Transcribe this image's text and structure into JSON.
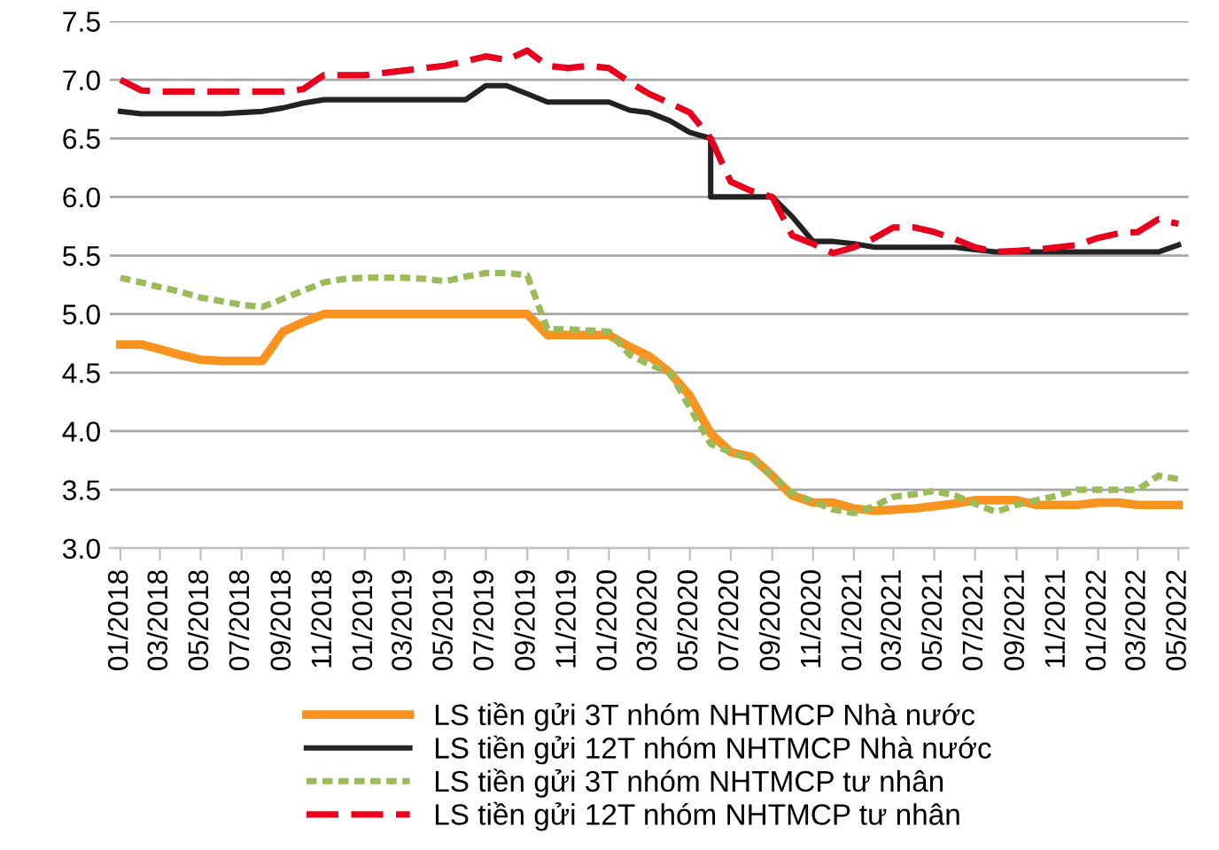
{
  "chart_data": {
    "type": "line",
    "grid": "y",
    "legend": "bottom",
    "ylim": [
      3.0,
      7.5
    ],
    "yticks": [
      {
        "value": 3.0,
        "label": "3.0"
      },
      {
        "value": 3.5,
        "label": "3.5"
      },
      {
        "value": 4.0,
        "label": "4.0"
      },
      {
        "value": 4.5,
        "label": "4.5"
      },
      {
        "value": 5.0,
        "label": "5.0"
      },
      {
        "value": 5.5,
        "label": "5.5"
      },
      {
        "value": 6.0,
        "label": "6.0"
      },
      {
        "value": 6.5,
        "label": "6.5"
      },
      {
        "value": 7.0,
        "label": "7.0"
      },
      {
        "value": 7.5,
        "label": "7.5"
      }
    ],
    "xlim": [
      "2017-12-16",
      "2022-05-16"
    ],
    "xticks": [
      {
        "value": "2018-01",
        "label": "01/2018"
      },
      {
        "value": "2018-03",
        "label": "03/2018"
      },
      {
        "value": "2018-05",
        "label": "05/2018"
      },
      {
        "value": "2018-07",
        "label": "07/2018"
      },
      {
        "value": "2018-09",
        "label": "09/2018"
      },
      {
        "value": "2018-11",
        "label": "11/2018"
      },
      {
        "value": "2019-01",
        "label": "01/2019"
      },
      {
        "value": "2019-03",
        "label": "03/2019"
      },
      {
        "value": "2019-05",
        "label": "05/2019"
      },
      {
        "value": "2019-07",
        "label": "07/2019"
      },
      {
        "value": "2019-09",
        "label": "09/2019"
      },
      {
        "value": "2019-11",
        "label": "11/2019"
      },
      {
        "value": "2020-01",
        "label": "01/2020"
      },
      {
        "value": "2020-03",
        "label": "03/2020"
      },
      {
        "value": "2020-05",
        "label": "05/2020"
      },
      {
        "value": "2020-07",
        "label": "07/2020"
      },
      {
        "value": "2020-09",
        "label": "09/2020"
      },
      {
        "value": "2020-11",
        "label": "11/2020"
      },
      {
        "value": "2021-01",
        "label": "01/2021"
      },
      {
        "value": "2021-03",
        "label": "03/2021"
      },
      {
        "value": "2021-05",
        "label": "05/2021"
      },
      {
        "value": "2021-07",
        "label": "07/2021"
      },
      {
        "value": "2021-09",
        "label": "09/2021"
      },
      {
        "value": "2021-11",
        "label": "11/2021"
      },
      {
        "value": "2022-01",
        "label": "01/2022"
      },
      {
        "value": "2022-03",
        "label": "03/2022"
      },
      {
        "value": "2022-05",
        "label": "05/2022"
      }
    ],
    "x": [
      "2018-01",
      "2018-02",
      "2018-03",
      "2018-04",
      "2018-05",
      "2018-06",
      "2018-07",
      "2018-08",
      "2018-09",
      "2018-10",
      "2018-11",
      "2018-12",
      "2019-01",
      "2019-02",
      "2019-03",
      "2019-04",
      "2019-05",
      "2019-06",
      "2019-07",
      "2019-08",
      "2019-09",
      "2019-10",
      "2019-11",
      "2019-12",
      "2020-01",
      "2020-02",
      "2020-03",
      "2020-04",
      "2020-05",
      "2020-06",
      "2020-07",
      "2020-08",
      "2020-09",
      "2020-10",
      "2020-11",
      "2020-12",
      "2021-01",
      "2021-02",
      "2021-03",
      "2021-04",
      "2021-05",
      "2021-06",
      "2021-07",
      "2021-08",
      "2021-09",
      "2021-10",
      "2021-11",
      "2021-12",
      "2022-01",
      "2022-02",
      "2022-03",
      "2022-04",
      "2022-05"
    ],
    "series": [
      {
        "name": "LS tiền gửi 3T nhóm NHTMCP Nhà nước",
        "color": "#f7931e",
        "line_style": "solid",
        "values": [
          4.74,
          4.74,
          4.7,
          4.65,
          4.61,
          4.6,
          4.6,
          4.6,
          4.85,
          4.93,
          5.0,
          5.0,
          5.0,
          5.0,
          5.0,
          5.0,
          5.0,
          5.0,
          5.0,
          5.0,
          5.0,
          4.82,
          4.82,
          4.82,
          4.82,
          4.72,
          4.64,
          4.5,
          4.3,
          3.98,
          3.82,
          3.78,
          3.62,
          3.45,
          3.39,
          3.39,
          3.34,
          3.32,
          3.33,
          3.34,
          3.36,
          3.38,
          3.41,
          3.41,
          3.41,
          3.37,
          3.37,
          3.37,
          3.39,
          3.39,
          3.37,
          3.37,
          3.37
        ]
      },
      {
        "name": "LS tiền gửi 12T nhóm NHTMCP Nhà nước",
        "color": "#222222",
        "line_style": "solid",
        "x": [
          "2018-01",
          "2018-02",
          "2018-03",
          "2018-04",
          "2018-05",
          "2018-06",
          "2018-07",
          "2018-08",
          "2018-09",
          "2018-10",
          "2018-11",
          "2018-12",
          "2019-01",
          "2019-02",
          "2019-03",
          "2019-04",
          "2019-05",
          "2019-06",
          "2019-07",
          "2019-08",
          "2019-09",
          "2019-10",
          "2019-11",
          "2019-12",
          "2020-01",
          "2020-02",
          "2020-03",
          "2020-04",
          "2020-05",
          "2020-06",
          "2020-06",
          "2020-07",
          "2020-08",
          "2020-09",
          "2020-10",
          "2020-11",
          "2020-12",
          "2021-01",
          "2021-02",
          "2021-03",
          "2021-04",
          "2021-05",
          "2021-06",
          "2021-07",
          "2021-08",
          "2021-09",
          "2021-10",
          "2021-11",
          "2021-12",
          "2022-01",
          "2022-02",
          "2022-03",
          "2022-04",
          "2022-05"
        ],
        "values": [
          6.73,
          6.71,
          6.71,
          6.71,
          6.71,
          6.71,
          6.72,
          6.73,
          6.76,
          6.8,
          6.83,
          6.83,
          6.83,
          6.83,
          6.83,
          6.83,
          6.83,
          6.83,
          6.95,
          6.95,
          6.88,
          6.81,
          6.81,
          6.81,
          6.81,
          6.74,
          6.72,
          6.65,
          6.55,
          6.5,
          6.0,
          6.0,
          6.0,
          6.0,
          5.83,
          5.62,
          5.62,
          5.6,
          5.57,
          5.57,
          5.57,
          5.57,
          5.57,
          5.55,
          5.53,
          5.53,
          5.53,
          5.53,
          5.53,
          5.53,
          5.53,
          5.53,
          5.53,
          5.59
        ]
      },
      {
        "name": "LS tiền gửi 3T nhóm NHTMCP tư nhân",
        "color": "#9bbb59",
        "line_style": "dotted",
        "values": [
          5.31,
          5.27,
          5.23,
          5.19,
          5.14,
          5.11,
          5.08,
          5.06,
          5.13,
          5.2,
          5.27,
          5.3,
          5.31,
          5.31,
          5.31,
          5.3,
          5.28,
          5.32,
          5.35,
          5.35,
          5.33,
          4.87,
          4.87,
          4.86,
          4.85,
          4.65,
          4.57,
          4.5,
          4.2,
          3.89,
          3.82,
          3.76,
          3.62,
          3.47,
          3.4,
          3.33,
          3.3,
          3.36,
          3.44,
          3.46,
          3.49,
          3.45,
          3.38,
          3.31,
          3.37,
          3.41,
          3.45,
          3.5,
          3.5,
          3.5,
          3.5,
          3.62,
          3.59
        ]
      },
      {
        "name": "LS tiền gửi 12T nhóm NHTMCP tư nhân",
        "color": "#e8001c",
        "line_style": "dashed",
        "values": [
          7.0,
          6.91,
          6.9,
          6.9,
          6.9,
          6.9,
          6.9,
          6.9,
          6.9,
          6.92,
          7.04,
          7.04,
          7.04,
          7.06,
          7.08,
          7.1,
          7.12,
          7.16,
          7.2,
          7.17,
          7.25,
          7.12,
          7.1,
          7.12,
          7.1,
          6.98,
          6.88,
          6.8,
          6.72,
          6.5,
          6.13,
          6.05,
          6.0,
          5.67,
          5.6,
          5.52,
          5.57,
          5.65,
          5.74,
          5.74,
          5.7,
          5.64,
          5.57,
          5.53,
          5.54,
          5.55,
          5.57,
          5.59,
          5.65,
          5.69,
          5.7,
          5.81,
          5.77
        ]
      }
    ]
  }
}
